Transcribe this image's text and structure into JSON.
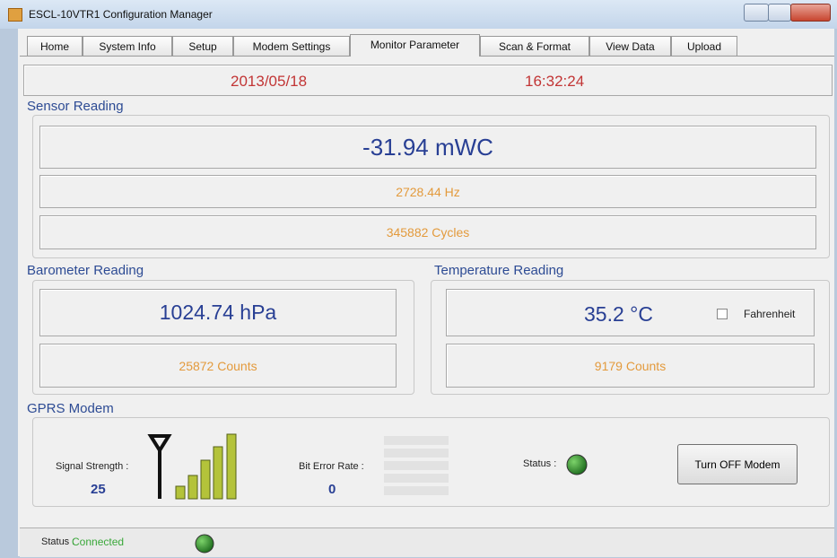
{
  "window": {
    "title": "ESCL-10VTR1 Configuration Manager"
  },
  "tabs": [
    "Home",
    "System Info",
    "Setup",
    "Modem Settings",
    "Monitor Parameter",
    "Scan & Format",
    "View Data",
    "Upload"
  ],
  "active_tab": 4,
  "datetime": {
    "date": "2013/05/18",
    "time": "16:32:24"
  },
  "sensor_reading": {
    "title": "Sensor Reading",
    "pressure": "-31.94 mWC",
    "frequency": "2728.44 Hz",
    "cycles": "345882 Cycles"
  },
  "barometer_reading": {
    "title": "Barometer Reading",
    "pressure": "1024.74 hPa",
    "counts": "25872 Counts"
  },
  "temperature_reading": {
    "title": "Temperature Reading",
    "temperature": "35.2 °C",
    "fahrenheit_label": "Fahrenheit",
    "fahrenheit_checked": false,
    "counts": "9179 Counts"
  },
  "gprs_modem": {
    "title": "GPRS Modem",
    "signal_strength_label": "Signal Strength :",
    "signal_strength": "25",
    "bit_error_rate_label": "Bit Error Rate :",
    "bit_error_rate": "0",
    "status_label": "Status :",
    "button": "Turn OFF Modem"
  },
  "status_bar": {
    "label": "Status :",
    "status": "Connected"
  }
}
